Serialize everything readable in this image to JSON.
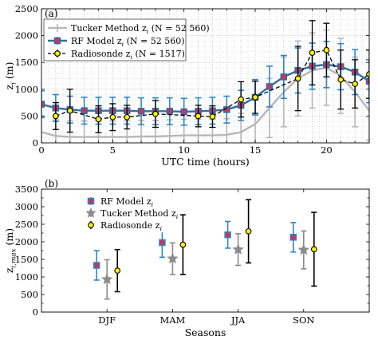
{
  "colors": {
    "tucker": "#b7b7b7",
    "tucker_dark": "#8c8c8c",
    "rf_line": "#2f6ea5",
    "rf_err": "#2f86c6",
    "rf_marker_face": "#c8345c",
    "radiosonde_face": "#fff200",
    "black": "#000000",
    "grid": "#bdbdbd"
  },
  "chart_data": [
    {
      "panel": "(a)",
      "type": "line",
      "xlabel": "UTC time (hours)",
      "ylabel": "z",
      "ylabel_sub": "i",
      "ylabel_unit": "(m)",
      "xlim": [
        0,
        23
      ],
      "ylim": [
        0,
        2500
      ],
      "xticks": [
        0,
        5,
        10,
        15,
        20
      ],
      "yticks": [
        0,
        500,
        1000,
        1500,
        2000,
        2500
      ],
      "grid": true,
      "legend_position": "top-left",
      "legend": [
        {
          "label": "Tucker Method z",
          "sub": "i",
          "suffix": " (N = 52 560)"
        },
        {
          "label": "RF Model z",
          "sub": "i",
          "suffix": " (N = 52 560)"
        },
        {
          "label": "Radiosonde z",
          "sub": "i",
          "suffix": " (N = 1517)"
        }
      ],
      "x": [
        0,
        1,
        2,
        3,
        4,
        5,
        6,
        7,
        8,
        9,
        10,
        11,
        12,
        13,
        14,
        15,
        16,
        17,
        18,
        19,
        20,
        21,
        22,
        23
      ],
      "series": [
        {
          "name": "Tucker Method z_i (N = 52 560)",
          "mean": [
            200,
            130,
            110,
            110,
            110,
            110,
            110,
            120,
            120,
            130,
            140,
            140,
            140,
            150,
            200,
            350,
            650,
            950,
            1200,
            1350,
            1400,
            1250,
            950,
            600
          ],
          "err": [
            300,
            300,
            300,
            300,
            300,
            300,
            300,
            300,
            300,
            300,
            300,
            300,
            300,
            300,
            350,
            450,
            550,
            650,
            700,
            700,
            700,
            700,
            650,
            550
          ]
        },
        {
          "name": "RF Model z_i (N = 52 560)",
          "mean": [
            720,
            650,
            620,
            600,
            600,
            600,
            600,
            590,
            590,
            590,
            580,
            590,
            600,
            620,
            700,
            850,
            1050,
            1230,
            1350,
            1430,
            1460,
            1420,
            1320,
            1150
          ],
          "err": [
            250,
            250,
            250,
            250,
            250,
            250,
            250,
            250,
            250,
            250,
            250,
            250,
            250,
            250,
            280,
            330,
            380,
            400,
            420,
            430,
            430,
            430,
            420,
            400
          ]
        },
        {
          "name": "Radiosonde z_i (N = 1517)",
          "x": [
            1,
            2,
            4,
            5,
            6,
            8,
            11,
            12,
            14,
            15,
            18,
            19,
            20,
            21,
            22,
            23
          ],
          "mean": [
            500,
            600,
            440,
            480,
            480,
            540,
            500,
            490,
            810,
            850,
            1200,
            1680,
            1730,
            1180,
            1100,
            1280
          ],
          "err": [
            250,
            400,
            250,
            250,
            220,
            250,
            200,
            200,
            330,
            300,
            600,
            600,
            500,
            550,
            450,
            450
          ]
        }
      ]
    },
    {
      "panel": "(b)",
      "type": "scatter",
      "xlabel": "Seasons",
      "ylabel": "z",
      "ylabel_sub": "i,max",
      "ylabel_unit": "(m)",
      "categories": [
        "DJF",
        "MAM",
        "JJA",
        "SON"
      ],
      "ylim": [
        0,
        3500
      ],
      "yticks": [
        0,
        500,
        1000,
        1500,
        2000,
        2500,
        3000,
        3500
      ],
      "grid": false,
      "legend_position": "top-left",
      "legend": [
        {
          "label": "RF Model z",
          "sub": "i"
        },
        {
          "label": "Tucker Method z",
          "sub": "i"
        },
        {
          "label": "Radiosonde z",
          "sub": "i"
        }
      ],
      "series": [
        {
          "name": "RF Model z_i",
          "mean": [
            1330,
            1980,
            2200,
            2130
          ],
          "err": [
            420,
            420,
            380,
            420
          ]
        },
        {
          "name": "Tucker Method z_i",
          "mean": [
            930,
            1520,
            1780,
            1770
          ],
          "err": [
            560,
            450,
            450,
            540
          ]
        },
        {
          "name": "Radiosonde z_i",
          "mean": [
            1180,
            1920,
            2300,
            1790
          ],
          "err": [
            600,
            850,
            900,
            1050
          ]
        }
      ]
    }
  ]
}
